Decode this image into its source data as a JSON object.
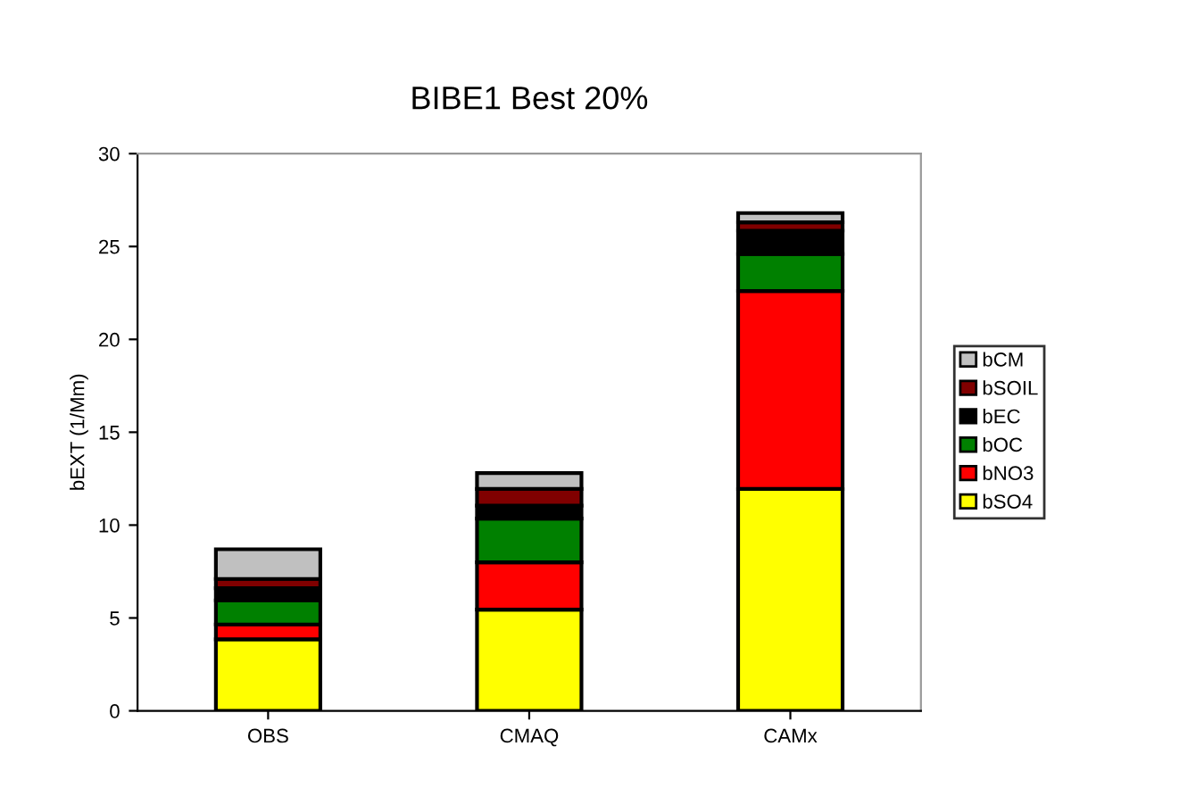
{
  "chart_data": {
    "type": "bar",
    "title": "BIBE1 Best 20%",
    "ylabel": "bEXT (1/Mm)",
    "categories": [
      "OBS",
      "CMAQ",
      "CAMx"
    ],
    "stacked": true,
    "ylim": [
      0,
      30
    ],
    "yticks": [
      0,
      5,
      10,
      15,
      20,
      25,
      30
    ],
    "grid": false,
    "legend": "right",
    "series": [
      {
        "name": "bSO4",
        "color": "#ffff00",
        "values": [
          3.85,
          5.45,
          11.95
        ]
      },
      {
        "name": "bNO3",
        "color": "#ff0000",
        "values": [
          0.8,
          2.55,
          10.65
        ]
      },
      {
        "name": "bOC",
        "color": "#008000",
        "values": [
          1.3,
          2.35,
          2.0
        ]
      },
      {
        "name": "bEC",
        "color": "#000000",
        "values": [
          0.65,
          0.7,
          1.25
        ]
      },
      {
        "name": "bSOIL",
        "color": "#800000",
        "values": [
          0.5,
          0.9,
          0.45
        ]
      },
      {
        "name": "bCM",
        "color": "#c0c0c0",
        "values": [
          1.6,
          0.85,
          0.5
        ]
      }
    ]
  }
}
